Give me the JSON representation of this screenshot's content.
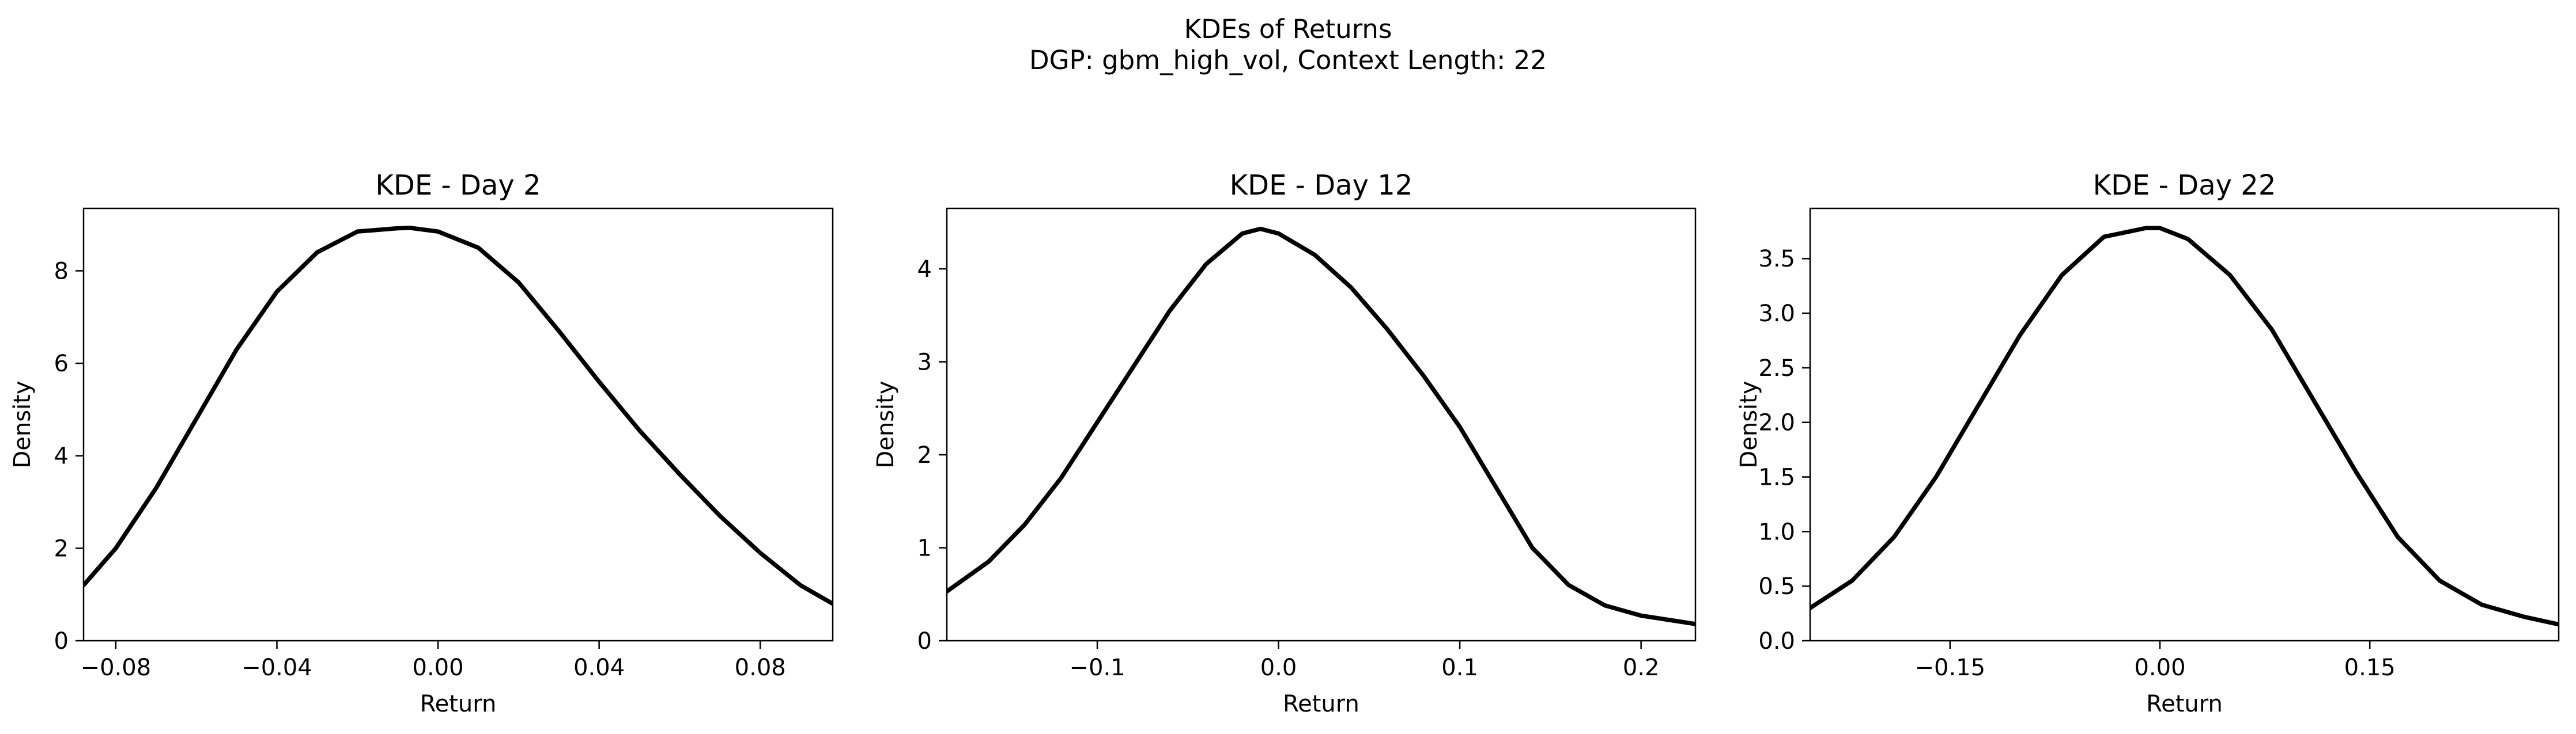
{
  "figure": {
    "title_line1": "KDEs of Returns",
    "title_line2": "DGP: gbm_high_vol, Context Length: 22"
  },
  "chart_data": [
    {
      "type": "line",
      "title": "KDE - Day 2",
      "xlabel": "Return",
      "ylabel": "Density",
      "xlim": [
        -0.088,
        0.098
      ],
      "ylim": [
        0,
        9.35
      ],
      "xticks": [
        -0.08,
        -0.04,
        0.0,
        0.04,
        0.08
      ],
      "xtick_labels": [
        "−0.08",
        "−0.04",
        "0.00",
        "0.04",
        "0.08"
      ],
      "yticks": [
        0,
        2,
        4,
        6,
        8
      ],
      "ytick_labels": [
        "0",
        "2",
        "4",
        "6",
        "8"
      ],
      "grid": false,
      "series": [
        {
          "color": "#000000",
          "x": [
            -0.088,
            -0.08,
            -0.07,
            -0.06,
            -0.05,
            -0.04,
            -0.03,
            -0.02,
            -0.01,
            -0.007,
            0.0,
            0.01,
            0.02,
            0.03,
            0.04,
            0.05,
            0.06,
            0.07,
            0.08,
            0.09,
            0.098
          ],
          "y": [
            1.2,
            2.0,
            3.3,
            4.8,
            6.3,
            7.55,
            8.4,
            8.85,
            8.92,
            8.93,
            8.85,
            8.5,
            7.75,
            6.7,
            5.6,
            4.55,
            3.6,
            2.7,
            1.9,
            1.2,
            0.8
          ]
        }
      ]
    },
    {
      "type": "line",
      "title": "KDE - Day 12",
      "xlabel": "Return",
      "ylabel": "Density",
      "xlim": [
        -0.183,
        0.23
      ],
      "ylim": [
        0,
        4.65
      ],
      "xticks": [
        -0.1,
        0.0,
        0.1,
        0.2
      ],
      "xtick_labels": [
        "−0.1",
        "0.0",
        "0.1",
        "0.2"
      ],
      "yticks": [
        0,
        1,
        2,
        3,
        4
      ],
      "ytick_labels": [
        "0",
        "1",
        "2",
        "3",
        "4"
      ],
      "grid": false,
      "series": [
        {
          "color": "#000000",
          "x": [
            -0.183,
            -0.16,
            -0.14,
            -0.12,
            -0.1,
            -0.08,
            -0.06,
            -0.04,
            -0.02,
            -0.01,
            0.0,
            0.02,
            0.04,
            0.06,
            0.08,
            0.1,
            0.12,
            0.14,
            0.16,
            0.18,
            0.2,
            0.23
          ],
          "y": [
            0.53,
            0.85,
            1.25,
            1.75,
            2.35,
            2.95,
            3.55,
            4.05,
            4.38,
            4.43,
            4.38,
            4.15,
            3.8,
            3.35,
            2.85,
            2.3,
            1.65,
            1.0,
            0.6,
            0.38,
            0.27,
            0.18
          ]
        }
      ]
    },
    {
      "type": "line",
      "title": "KDE - Day 22",
      "xlabel": "Return",
      "ylabel": "Density",
      "xlim": [
        -0.25,
        0.285
      ],
      "ylim": [
        0,
        3.96
      ],
      "xticks": [
        -0.15,
        0.0,
        0.15
      ],
      "xtick_labels": [
        "−0.15",
        "0.00",
        "0.15"
      ],
      "yticks": [
        0.0,
        0.5,
        1.0,
        1.5,
        2.0,
        2.5,
        3.0,
        3.5
      ],
      "ytick_labels": [
        "0.0",
        "0.5",
        "1.0",
        "1.5",
        "2.0",
        "2.5",
        "3.0",
        "3.5"
      ],
      "grid": false,
      "series": [
        {
          "color": "#000000",
          "x": [
            -0.25,
            -0.22,
            -0.19,
            -0.16,
            -0.13,
            -0.1,
            -0.07,
            -0.04,
            -0.01,
            0.0,
            0.02,
            0.05,
            0.08,
            0.11,
            0.14,
            0.17,
            0.2,
            0.23,
            0.26,
            0.285
          ],
          "y": [
            0.3,
            0.55,
            0.95,
            1.5,
            2.15,
            2.8,
            3.35,
            3.7,
            3.78,
            3.78,
            3.68,
            3.35,
            2.85,
            2.2,
            1.55,
            0.95,
            0.55,
            0.33,
            0.22,
            0.15
          ]
        }
      ]
    }
  ]
}
